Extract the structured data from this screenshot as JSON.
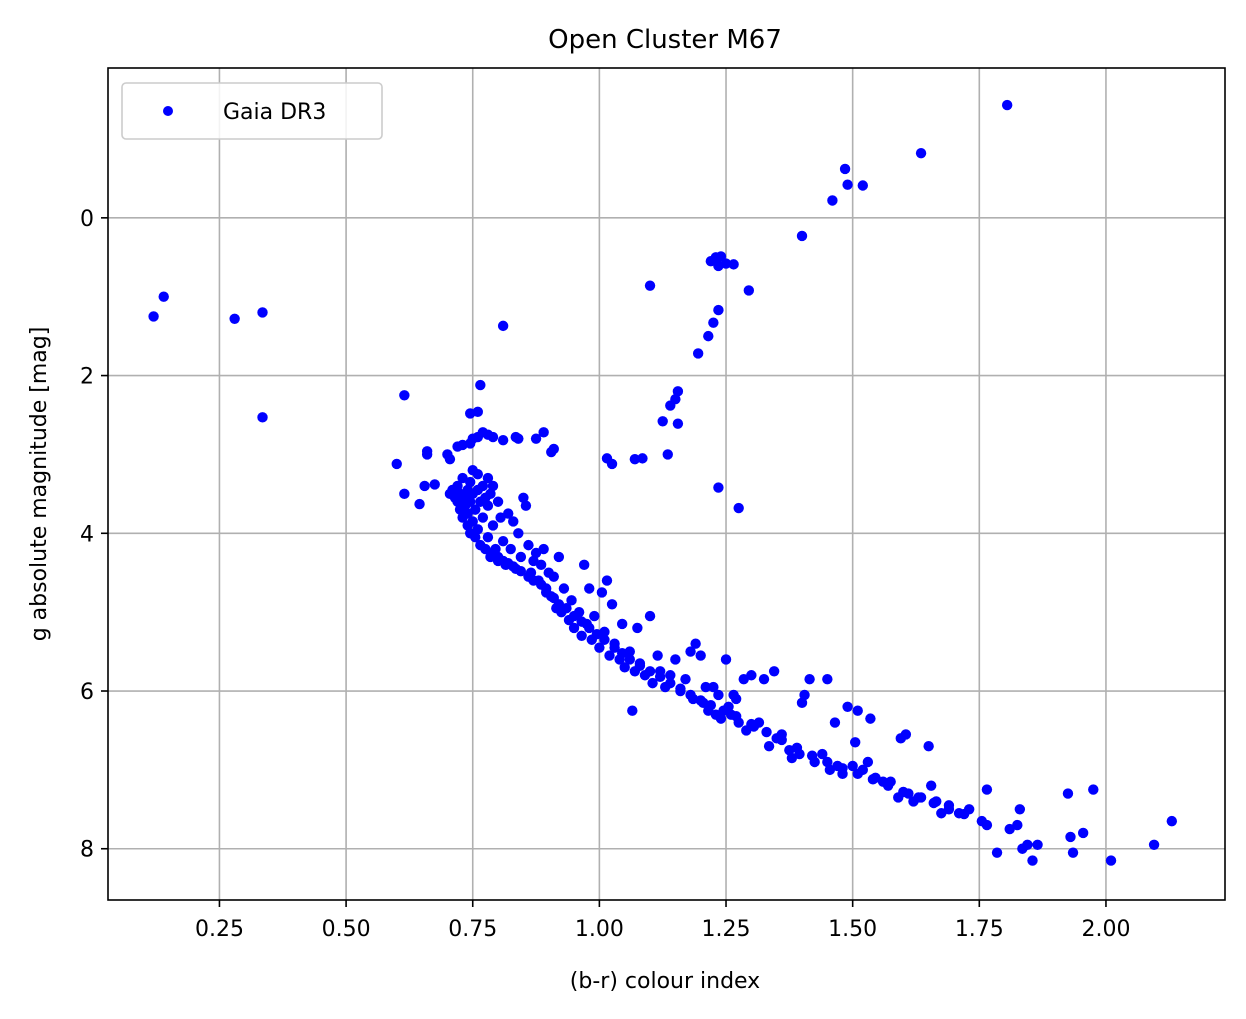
{
  "chart_data": {
    "type": "scatter",
    "title": "Open Cluster M67",
    "xlabel": "(b-r) colour index",
    "ylabel": "g absolute magnitude [mag]",
    "xlim": [
      0.03,
      2.235
    ],
    "ylim": [
      8.65,
      -1.9
    ],
    "y_inverted": true,
    "grid": true,
    "legend_position": "top-left",
    "x_ticks": [
      "0.25",
      "0.50",
      "0.75",
      "1.00",
      "1.25",
      "1.50",
      "1.75",
      "2.00"
    ],
    "x_tick_values": [
      0.25,
      0.5,
      0.75,
      1.0,
      1.25,
      1.5,
      1.75,
      2.0
    ],
    "y_ticks": [
      "0",
      "2",
      "4",
      "6",
      "8"
    ],
    "y_tick_values": [
      0,
      2,
      4,
      6,
      8
    ],
    "series": [
      {
        "name": "Gaia DR3",
        "color": "#0000ff",
        "marker": "circle",
        "points": [
          [
            1.805,
            -1.43
          ],
          [
            1.635,
            -0.82
          ],
          [
            1.485,
            -0.62
          ],
          [
            1.49,
            -0.42
          ],
          [
            1.52,
            -0.41
          ],
          [
            1.46,
            -0.22
          ],
          [
            1.4,
            0.23
          ],
          [
            1.23,
            0.5
          ],
          [
            1.24,
            0.49
          ],
          [
            1.22,
            0.55
          ],
          [
            1.25,
            0.58
          ],
          [
            1.265,
            0.59
          ],
          [
            1.235,
            0.61
          ],
          [
            1.1,
            0.86
          ],
          [
            1.295,
            0.92
          ],
          [
            1.235,
            1.17
          ],
          [
            1.225,
            1.33
          ],
          [
            1.215,
            1.5
          ],
          [
            1.195,
            1.72
          ],
          [
            0.81,
            1.37
          ],
          [
            0.14,
            1.0
          ],
          [
            0.12,
            1.25
          ],
          [
            0.28,
            1.28
          ],
          [
            0.335,
            1.2
          ],
          [
            0.335,
            2.53
          ],
          [
            0.615,
            2.25
          ],
          [
            0.765,
            2.12
          ],
          [
            1.155,
            2.2
          ],
          [
            1.15,
            2.3
          ],
          [
            1.14,
            2.38
          ],
          [
            1.125,
            2.58
          ],
          [
            1.155,
            2.61
          ],
          [
            1.135,
            3.0
          ],
          [
            1.085,
            3.05
          ],
          [
            1.07,
            3.06
          ],
          [
            1.015,
            3.05
          ],
          [
            1.025,
            3.12
          ],
          [
            0.6,
            3.12
          ],
          [
            0.615,
            3.5
          ],
          [
            0.645,
            3.63
          ],
          [
            0.655,
            3.4
          ],
          [
            0.675,
            3.38
          ],
          [
            0.66,
            3.0
          ],
          [
            0.66,
            2.96
          ],
          [
            0.7,
            3.0
          ],
          [
            0.705,
            3.06
          ],
          [
            0.72,
            2.9
          ],
          [
            0.73,
            2.88
          ],
          [
            0.745,
            2.86
          ],
          [
            0.75,
            2.8
          ],
          [
            0.76,
            2.78
          ],
          [
            0.77,
            2.72
          ],
          [
            0.78,
            2.75
          ],
          [
            0.79,
            2.78
          ],
          [
            0.81,
            2.82
          ],
          [
            0.835,
            2.78
          ],
          [
            0.84,
            2.8
          ],
          [
            0.875,
            2.8
          ],
          [
            0.89,
            2.72
          ],
          [
            0.905,
            2.97
          ],
          [
            0.91,
            2.93
          ],
          [
            0.745,
            2.48
          ],
          [
            0.76,
            2.46
          ],
          [
            1.235,
            3.42
          ],
          [
            1.275,
            3.68
          ],
          [
            0.705,
            3.5
          ],
          [
            0.71,
            3.45
          ],
          [
            0.715,
            3.55
          ],
          [
            0.72,
            3.4
          ],
          [
            0.72,
            3.6
          ],
          [
            0.725,
            3.5
          ],
          [
            0.725,
            3.7
          ],
          [
            0.73,
            3.3
          ],
          [
            0.73,
            3.8
          ],
          [
            0.735,
            3.55
          ],
          [
            0.735,
            3.65
          ],
          [
            0.74,
            3.45
          ],
          [
            0.74,
            3.75
          ],
          [
            0.74,
            3.9
          ],
          [
            0.745,
            3.35
          ],
          [
            0.745,
            3.6
          ],
          [
            0.745,
            4.0
          ],
          [
            0.75,
            3.2
          ],
          [
            0.75,
            3.5
          ],
          [
            0.75,
            3.85
          ],
          [
            0.755,
            3.7
          ],
          [
            0.755,
            4.05
          ],
          [
            0.76,
            3.25
          ],
          [
            0.76,
            3.45
          ],
          [
            0.76,
            3.95
          ],
          [
            0.765,
            3.6
          ],
          [
            0.765,
            4.15
          ],
          [
            0.77,
            3.4
          ],
          [
            0.77,
            3.8
          ],
          [
            0.775,
            3.55
          ],
          [
            0.775,
            4.2
          ],
          [
            0.78,
            3.3
          ],
          [
            0.78,
            3.65
          ],
          [
            0.78,
            4.05
          ],
          [
            0.785,
            3.5
          ],
          [
            0.785,
            4.3
          ],
          [
            0.79,
            3.4
          ],
          [
            0.79,
            3.9
          ],
          [
            0.795,
            4.2
          ],
          [
            0.8,
            3.6
          ],
          [
            0.8,
            4.35
          ],
          [
            0.805,
            3.8
          ],
          [
            0.81,
            4.1
          ],
          [
            0.815,
            4.4
          ],
          [
            0.82,
            3.75
          ],
          [
            0.825,
            4.2
          ],
          [
            0.83,
            3.85
          ],
          [
            0.835,
            4.45
          ],
          [
            0.84,
            4.0
          ],
          [
            0.845,
            4.3
          ],
          [
            0.85,
            3.55
          ],
          [
            0.855,
            3.65
          ],
          [
            0.86,
            4.15
          ],
          [
            0.865,
            4.5
          ],
          [
            0.87,
            4.35
          ],
          [
            0.875,
            4.25
          ],
          [
            0.88,
            4.6
          ],
          [
            0.885,
            4.4
          ],
          [
            0.89,
            4.2
          ],
          [
            0.895,
            4.7
          ],
          [
            0.9,
            4.5
          ],
          [
            0.905,
            4.8
          ],
          [
            0.91,
            4.55
          ],
          [
            0.915,
            4.95
          ],
          [
            0.92,
            4.3
          ],
          [
            0.925,
            5.0
          ],
          [
            0.93,
            4.7
          ],
          [
            0.94,
            5.1
          ],
          [
            0.945,
            4.85
          ],
          [
            0.95,
            5.2
          ],
          [
            0.96,
            5.0
          ],
          [
            0.965,
            5.3
          ],
          [
            0.97,
            4.4
          ],
          [
            0.975,
            5.15
          ],
          [
            0.98,
            4.7
          ],
          [
            0.985,
            5.35
          ],
          [
            0.99,
            5.05
          ],
          [
            1.0,
            5.45
          ],
          [
            1.005,
            4.75
          ],
          [
            1.01,
            5.25
          ],
          [
            1.015,
            4.6
          ],
          [
            1.02,
            5.55
          ],
          [
            1.025,
            4.9
          ],
          [
            1.03,
            5.4
          ],
          [
            1.04,
            5.6
          ],
          [
            1.045,
            5.15
          ],
          [
            1.05,
            5.7
          ],
          [
            1.06,
            5.5
          ],
          [
            1.065,
            6.25
          ],
          [
            1.07,
            5.75
          ],
          [
            1.075,
            5.2
          ],
          [
            1.08,
            5.65
          ],
          [
            1.09,
            5.8
          ],
          [
            1.1,
            5.05
          ],
          [
            1.105,
            5.9
          ],
          [
            1.115,
            5.55
          ],
          [
            1.12,
            5.75
          ],
          [
            1.13,
            5.95
          ],
          [
            1.14,
            5.8
          ],
          [
            1.15,
            5.6
          ],
          [
            1.16,
            6.0
          ],
          [
            1.17,
            5.85
          ],
          [
            1.18,
            5.5
          ],
          [
            1.185,
            6.1
          ],
          [
            1.19,
            5.4
          ],
          [
            1.2,
            5.55
          ],
          [
            1.205,
            6.15
          ],
          [
            1.21,
            5.95
          ],
          [
            1.215,
            6.25
          ],
          [
            1.225,
            5.95
          ],
          [
            1.23,
            6.3
          ],
          [
            1.235,
            6.05
          ],
          [
            1.24,
            6.35
          ],
          [
            1.25,
            5.6
          ],
          [
            1.255,
            6.2
          ],
          [
            1.26,
            6.3
          ],
          [
            1.265,
            6.05
          ],
          [
            1.27,
            6.1
          ],
          [
            1.275,
            6.4
          ],
          [
            1.285,
            5.85
          ],
          [
            1.29,
            6.5
          ],
          [
            1.3,
            5.8
          ],
          [
            1.305,
            6.45
          ],
          [
            1.315,
            6.4
          ],
          [
            1.325,
            5.85
          ],
          [
            1.335,
            6.7
          ],
          [
            1.345,
            5.75
          ],
          [
            1.35,
            6.6
          ],
          [
            1.36,
            6.55
          ],
          [
            1.375,
            6.75
          ],
          [
            1.38,
            6.85
          ],
          [
            1.395,
            6.8
          ],
          [
            1.4,
            6.15
          ],
          [
            1.405,
            6.05
          ],
          [
            1.415,
            5.85
          ],
          [
            1.425,
            6.9
          ],
          [
            1.44,
            6.8
          ],
          [
            1.45,
            5.85
          ],
          [
            1.455,
            7.0
          ],
          [
            1.465,
            6.4
          ],
          [
            1.47,
            6.95
          ],
          [
            1.48,
            7.05
          ],
          [
            1.49,
            6.2
          ],
          [
            1.5,
            6.95
          ],
          [
            1.505,
            6.65
          ],
          [
            1.51,
            6.25
          ],
          [
            1.52,
            7.0
          ],
          [
            1.53,
            6.9
          ],
          [
            1.535,
            6.35
          ],
          [
            1.545,
            7.1
          ],
          [
            1.56,
            7.15
          ],
          [
            1.575,
            7.15
          ],
          [
            1.59,
            7.35
          ],
          [
            1.595,
            6.6
          ],
          [
            1.605,
            6.55
          ],
          [
            1.61,
            7.3
          ],
          [
            1.62,
            7.4
          ],
          [
            1.635,
            7.35
          ],
          [
            1.65,
            6.7
          ],
          [
            1.655,
            7.2
          ],
          [
            1.665,
            7.4
          ],
          [
            1.675,
            7.55
          ],
          [
            1.69,
            7.45
          ],
          [
            1.71,
            7.55
          ],
          [
            1.73,
            7.5
          ],
          [
            1.755,
            7.65
          ],
          [
            1.765,
            7.7
          ],
          [
            1.765,
            7.25
          ],
          [
            1.785,
            8.05
          ],
          [
            1.81,
            7.75
          ],
          [
            1.825,
            7.7
          ],
          [
            1.83,
            7.5
          ],
          [
            1.835,
            8.0
          ],
          [
            1.845,
            7.95
          ],
          [
            1.855,
            8.15
          ],
          [
            1.865,
            7.95
          ],
          [
            1.925,
            7.3
          ],
          [
            1.93,
            7.85
          ],
          [
            1.935,
            8.05
          ],
          [
            1.955,
            7.8
          ],
          [
            1.975,
            7.25
          ],
          [
            2.01,
            8.15
          ],
          [
            2.095,
            7.95
          ],
          [
            2.13,
            7.65
          ],
          [
            0.79,
            4.25
          ],
          [
            0.8,
            4.3
          ],
          [
            0.81,
            4.35
          ],
          [
            0.82,
            4.38
          ],
          [
            0.83,
            4.42
          ],
          [
            0.845,
            4.48
          ],
          [
            0.86,
            4.55
          ],
          [
            0.87,
            4.6
          ],
          [
            0.885,
            4.65
          ],
          [
            0.895,
            4.75
          ],
          [
            0.91,
            4.82
          ],
          [
            0.92,
            4.9
          ],
          [
            0.935,
            4.95
          ],
          [
            0.95,
            5.05
          ],
          [
            0.965,
            5.12
          ],
          [
            0.98,
            5.2
          ],
          [
            0.995,
            5.28
          ],
          [
            1.01,
            5.35
          ],
          [
            1.03,
            5.45
          ],
          [
            1.045,
            5.52
          ],
          [
            1.06,
            5.6
          ],
          [
            1.08,
            5.68
          ],
          [
            1.1,
            5.75
          ],
          [
            1.12,
            5.82
          ],
          [
            1.14,
            5.9
          ],
          [
            1.16,
            5.97
          ],
          [
            1.18,
            6.05
          ],
          [
            1.2,
            6.12
          ],
          [
            1.22,
            6.18
          ],
          [
            1.245,
            6.25
          ],
          [
            1.27,
            6.32
          ],
          [
            1.3,
            6.42
          ],
          [
            1.33,
            6.52
          ],
          [
            1.36,
            6.62
          ],
          [
            1.39,
            6.72
          ],
          [
            1.42,
            6.82
          ],
          [
            1.45,
            6.9
          ],
          [
            1.48,
            6.98
          ],
          [
            1.51,
            7.05
          ],
          [
            1.54,
            7.12
          ],
          [
            1.57,
            7.2
          ],
          [
            1.6,
            7.28
          ],
          [
            1.63,
            7.35
          ],
          [
            1.66,
            7.42
          ],
          [
            1.69,
            7.5
          ],
          [
            1.72,
            7.56
          ]
        ]
      }
    ]
  }
}
